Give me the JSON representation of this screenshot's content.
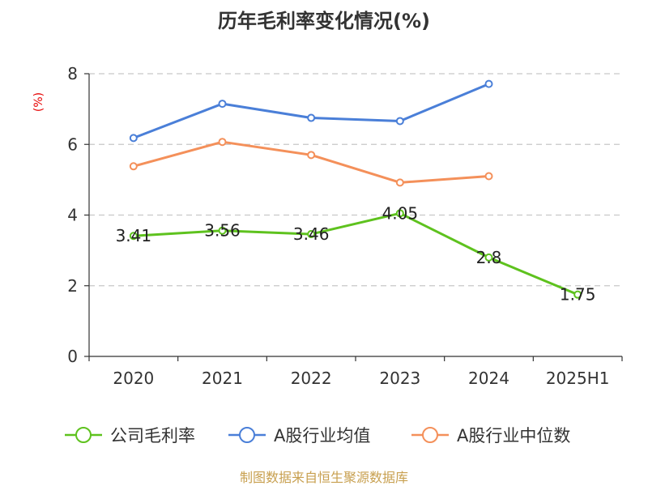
{
  "chart_data": {
    "type": "line",
    "title": "历年毛利率变化情况(%)",
    "ylabel": "(%)",
    "xlabel": "",
    "ylim": [
      0,
      8
    ],
    "yticks": [
      0,
      2,
      4,
      6,
      8
    ],
    "grid": true,
    "categories": [
      "2020",
      "2021",
      "2022",
      "2023",
      "2024",
      "2025H1"
    ],
    "series": [
      {
        "name": "公司毛利率",
        "color": "#5ec21e",
        "values": [
          3.41,
          3.56,
          3.46,
          4.05,
          2.8,
          1.75
        ],
        "labels": [
          "3.41",
          "3.56",
          "3.46",
          "4.05",
          "2.8",
          "1.75"
        ],
        "show_labels": true
      },
      {
        "name": "A股行业均值",
        "color": "#4a7fd8",
        "values": [
          6.18,
          7.15,
          6.75,
          6.66,
          7.71,
          null
        ],
        "show_labels": false
      },
      {
        "name": "A股行业中位数",
        "color": "#f4905a",
        "values": [
          5.38,
          6.07,
          5.7,
          4.92,
          5.1,
          null
        ],
        "show_labels": false
      }
    ],
    "legend_position": "bottom"
  },
  "source": "制图数据来自恒生聚源数据库"
}
